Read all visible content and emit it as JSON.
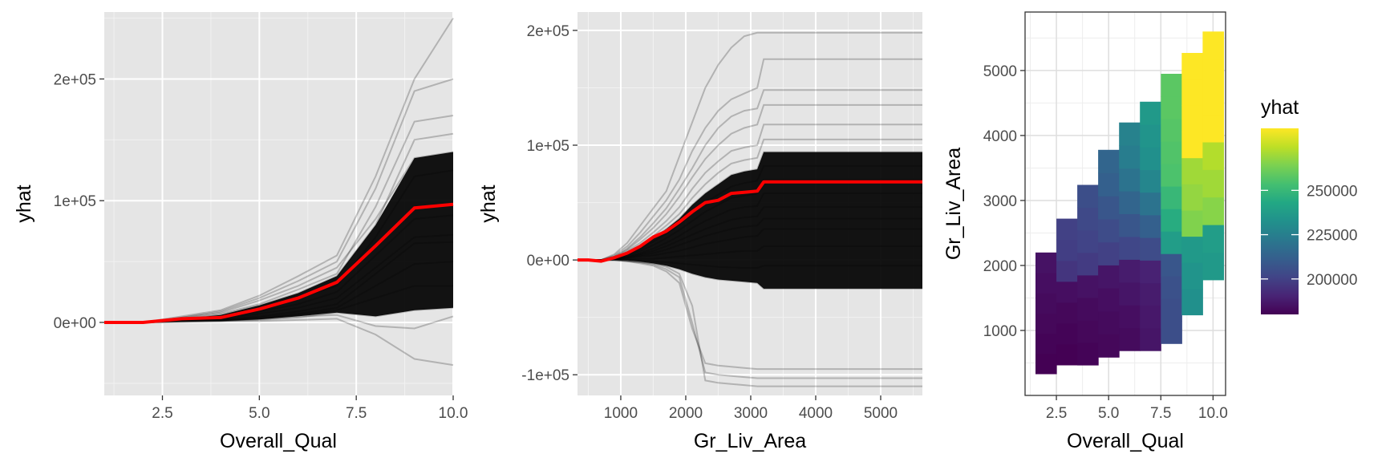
{
  "chart_data": [
    {
      "type": "line",
      "xlabel": "Overall_Qual",
      "ylabel": "yhat",
      "xlim": [
        1,
        10
      ],
      "ylim": [
        -60000,
        255000
      ],
      "x_ticks": [
        2.5,
        5.0,
        7.5,
        10.0
      ],
      "x_tick_labels": [
        "2.5",
        "5.0",
        "7.5",
        "10.0"
      ],
      "y_ticks": [
        0,
        100000,
        200000
      ],
      "y_tick_labels": [
        "0e+00",
        "1e+05",
        "2e+05"
      ],
      "grid": true,
      "x": [
        1,
        2,
        3,
        4,
        5,
        6,
        7,
        8,
        9,
        10
      ],
      "series": [
        {
          "role": "pd-average",
          "color": "#ff0000",
          "values": [
            0,
            0,
            3000,
            4000,
            11000,
            20000,
            33000,
            63000,
            94000,
            97000
          ]
        },
        {
          "role": "ice",
          "color": "#000000",
          "values": [
            0,
            0,
            4000,
            8000,
            18000,
            30000,
            45000,
            85000,
            135000,
            140000
          ]
        },
        {
          "role": "ice",
          "color": "#000000",
          "values": [
            0,
            0,
            5000,
            10000,
            22000,
            38000,
            55000,
            120000,
            200000,
            250000
          ]
        },
        {
          "role": "ice",
          "color": "#000000",
          "values": [
            0,
            0,
            4000,
            9000,
            20000,
            34000,
            50000,
            110000,
            190000,
            200000
          ]
        },
        {
          "role": "ice",
          "color": "#000000",
          "values": [
            0,
            0,
            3000,
            7000,
            15000,
            27000,
            40000,
            95000,
            165000,
            170000
          ]
        },
        {
          "role": "ice",
          "color": "#000000",
          "values": [
            0,
            0,
            3000,
            6000,
            14000,
            24000,
            38000,
            80000,
            150000,
            155000
          ]
        },
        {
          "role": "ice",
          "color": "#000000",
          "values": [
            0,
            0,
            2500,
            5000,
            12000,
            20000,
            30000,
            70000,
            120000,
            125000
          ]
        },
        {
          "role": "ice",
          "color": "#000000",
          "values": [
            0,
            0,
            2000,
            4000,
            9000,
            15000,
            25000,
            55000,
            85000,
            88000
          ]
        },
        {
          "role": "ice",
          "color": "#000000",
          "values": [
            0,
            0,
            1500,
            3000,
            7000,
            12000,
            20000,
            45000,
            70000,
            72000
          ]
        },
        {
          "role": "ice",
          "color": "#000000",
          "values": [
            0,
            0,
            1000,
            2000,
            5000,
            9000,
            15000,
            40000,
            65000,
            66000
          ]
        },
        {
          "role": "ice",
          "color": "#000000",
          "values": [
            0,
            0,
            1000,
            1000,
            3000,
            6000,
            10000,
            20000,
            30000,
            30000
          ]
        },
        {
          "role": "ice",
          "color": "#000000",
          "values": [
            0,
            0,
            500,
            1000,
            2000,
            4000,
            8000,
            5000,
            10000,
            12000
          ]
        },
        {
          "role": "ice",
          "color": "#000000",
          "values": [
            0,
            0,
            500,
            1000,
            1000,
            2000,
            3000,
            -10000,
            -30000,
            -35000
          ]
        },
        {
          "role": "ice",
          "color": "#000000",
          "values": [
            0,
            0,
            1000,
            2000,
            4000,
            7000,
            12000,
            30000,
            48000,
            50000
          ]
        },
        {
          "role": "ice",
          "color": "#000000",
          "values": [
            0,
            0,
            800,
            1500,
            2500,
            5000,
            6000,
            -3000,
            -5000,
            5000
          ]
        }
      ]
    },
    {
      "type": "line",
      "xlabel": "Gr_Liv_Area",
      "ylabel": "yhat",
      "xlim": [
        334,
        5642
      ],
      "ylim": [
        -118000,
        216000
      ],
      "x_ticks": [
        1000,
        2000,
        3000,
        4000,
        5000
      ],
      "x_tick_labels": [
        "1000",
        "2000",
        "3000",
        "4000",
        "5000"
      ],
      "y_ticks": [
        -100000,
        0,
        100000,
        200000
      ],
      "y_tick_labels": [
        "-1e+05",
        "0e+00",
        "1e+05",
        "2e+05"
      ],
      "grid": true,
      "x": [
        334,
        500,
        700,
        900,
        1100,
        1300,
        1500,
        1700,
        1900,
        2100,
        2300,
        2500,
        2700,
        2900,
        3100,
        3200,
        4000,
        5000,
        5642
      ],
      "series": [
        {
          "role": "pd-average",
          "color": "#ff0000",
          "values": [
            0,
            0,
            -1000,
            2000,
            6000,
            12000,
            20000,
            25000,
            33000,
            42000,
            50000,
            52000,
            58000,
            59000,
            60000,
            68000,
            68000,
            68000,
            68000
          ]
        },
        {
          "role": "ice",
          "color": "#000000",
          "values": [
            0,
            0,
            0,
            5000,
            15000,
            30000,
            45000,
            60000,
            90000,
            120000,
            150000,
            170000,
            185000,
            195000,
            198000,
            198000,
            198000,
            198000,
            198000
          ]
        },
        {
          "role": "ice",
          "color": "#000000",
          "values": [
            0,
            0,
            0,
            4000,
            12000,
            24000,
            38000,
            52000,
            70000,
            95000,
            115000,
            130000,
            140000,
            145000,
            150000,
            175000,
            175000,
            175000,
            175000
          ]
        },
        {
          "role": "ice",
          "color": "#000000",
          "values": [
            0,
            0,
            0,
            3000,
            10000,
            20000,
            32000,
            45000,
            62000,
            80000,
            100000,
            115000,
            125000,
            130000,
            132000,
            148000,
            148000,
            148000,
            148000
          ]
        },
        {
          "role": "ice",
          "color": "#000000",
          "values": [
            0,
            0,
            0,
            3000,
            9000,
            18000,
            28000,
            40000,
            55000,
            72000,
            88000,
            100000,
            110000,
            115000,
            118000,
            135000,
            135000,
            135000,
            135000
          ]
        },
        {
          "role": "ice",
          "color": "#000000",
          "values": [
            0,
            0,
            0,
            2000,
            8000,
            15000,
            24000,
            34000,
            46000,
            62000,
            76000,
            86000,
            95000,
            98000,
            100000,
            118000,
            118000,
            118000,
            118000
          ]
        },
        {
          "role": "ice",
          "color": "#000000",
          "values": [
            0,
            0,
            0,
            2000,
            7000,
            13000,
            21000,
            30000,
            40000,
            54000,
            66000,
            76000,
            84000,
            87000,
            89000,
            105000,
            105000,
            105000,
            105000
          ]
        },
        {
          "role": "ice",
          "color": "#000000",
          "values": [
            0,
            0,
            0,
            2000,
            6000,
            12000,
            19000,
            27000,
            36000,
            48000,
            58000,
            66000,
            74000,
            77000,
            79000,
            94000,
            94000,
            94000,
            94000
          ]
        },
        {
          "role": "ice",
          "color": "#000000",
          "values": [
            0,
            0,
            0,
            1500,
            5000,
            10000,
            16000,
            23000,
            31000,
            41000,
            50000,
            57000,
            64000,
            67000,
            69000,
            82000,
            82000,
            82000,
            82000
          ]
        },
        {
          "role": "ice",
          "color": "#000000",
          "values": [
            0,
            0,
            0,
            1000,
            4000,
            8000,
            13000,
            19000,
            26000,
            34000,
            42000,
            48000,
            54000,
            56000,
            58000,
            70000,
            70000,
            70000,
            70000
          ]
        },
        {
          "role": "ice",
          "color": "#000000",
          "values": [
            0,
            0,
            0,
            1000,
            3000,
            6000,
            10000,
            15000,
            21000,
            28000,
            34000,
            39000,
            44000,
            46000,
            47000,
            58000,
            58000,
            58000,
            58000
          ]
        },
        {
          "role": "ice",
          "color": "#000000",
          "values": [
            0,
            0,
            0,
            500,
            2500,
            5000,
            8000,
            12000,
            17000,
            22000,
            27000,
            31000,
            35000,
            37000,
            38000,
            46000,
            46000,
            46000,
            46000
          ]
        },
        {
          "role": "ice",
          "color": "#000000",
          "values": [
            0,
            0,
            0,
            500,
            2000,
            4000,
            6000,
            9000,
            13000,
            17000,
            21000,
            24000,
            27000,
            29000,
            30000,
            36000,
            36000,
            36000,
            36000
          ]
        },
        {
          "role": "ice",
          "color": "#000000",
          "values": [
            0,
            0,
            0,
            500,
            1500,
            3000,
            4000,
            6000,
            8000,
            11000,
            14000,
            16000,
            18000,
            20000,
            21000,
            27000,
            27000,
            27000,
            27000
          ]
        },
        {
          "role": "ice",
          "color": "#000000",
          "values": [
            0,
            0,
            0,
            0,
            500,
            1000,
            1000,
            2000,
            3000,
            4000,
            5000,
            6000,
            7000,
            8000,
            8000,
            12000,
            12000,
            12000,
            12000
          ]
        },
        {
          "role": "ice",
          "color": "#000000",
          "values": [
            0,
            0,
            0,
            0,
            0,
            -500,
            -1000,
            -2000,
            -3000,
            -4000,
            -5000,
            -6000,
            -6500,
            -7000,
            -7000,
            -5000,
            -5000,
            -5000,
            -5000
          ]
        },
        {
          "role": "ice",
          "color": "#000000",
          "values": [
            0,
            0,
            0,
            0,
            -1000,
            -2000,
            -3000,
            -5000,
            -8000,
            -12000,
            -15000,
            -17000,
            -18000,
            -19000,
            -20000,
            -25000,
            -25000,
            -25000,
            -25000
          ]
        },
        {
          "role": "ice",
          "color": "#000000",
          "values": [
            0,
            0,
            0,
            0,
            -1000,
            -3000,
            -5000,
            -10000,
            -20000,
            -60000,
            -90000,
            -92000,
            -93000,
            -94000,
            -95000,
            -95000,
            -95000,
            -95000,
            -95000
          ]
        },
        {
          "role": "ice",
          "color": "#000000",
          "values": [
            0,
            0,
            0,
            0,
            -1000,
            -2000,
            -4000,
            -8000,
            -15000,
            -55000,
            -98000,
            -100000,
            -101000,
            -102000,
            -103000,
            -103000,
            -103000,
            -103000,
            -103000
          ]
        },
        {
          "role": "ice",
          "color": "#000000",
          "values": [
            0,
            0,
            0,
            0,
            -500,
            -1500,
            -3000,
            -6000,
            -12000,
            -40000,
            -105000,
            -107000,
            -108000,
            -109000,
            -110000,
            -110000,
            -110000,
            -110000,
            -110000
          ]
        }
      ]
    },
    {
      "type": "heatmap",
      "xlabel": "Overall_Qual",
      "ylabel": "Gr_Liv_Area",
      "xlim": [
        1,
        10.6
      ],
      "ylim": [
        0,
        5900
      ],
      "x_ticks": [
        2.5,
        5.0,
        7.5,
        10.0
      ],
      "x_tick_labels": [
        "2.5",
        "5.0",
        "7.5",
        "10.0"
      ],
      "y_ticks": [
        1000,
        2000,
        3000,
        4000,
        5000
      ],
      "y_tick_labels": [
        "1000",
        "2000",
        "3000",
        "4000",
        "5000"
      ],
      "grid": true,
      "columns": [
        {
          "x": 2,
          "y_min": 334,
          "y_max": 2200,
          "values": [
            180000,
            181000,
            182000,
            183000,
            184000,
            185000
          ]
        },
        {
          "x": 3,
          "y_min": 470,
          "y_max": 2720,
          "values": [
            180000,
            181000,
            182000,
            184000,
            196000,
            199000,
            200000
          ]
        },
        {
          "x": 4,
          "y_min": 470,
          "y_max": 3240,
          "values": [
            181000,
            182000,
            183000,
            185000,
            198000,
            201000,
            203000,
            205000
          ]
        },
        {
          "x": 5,
          "y_min": 590,
          "y_max": 3780,
          "values": [
            182000,
            183000,
            184000,
            186000,
            200000,
            204000,
            208000,
            212000,
            214000
          ]
        },
        {
          "x": 6,
          "y_min": 690,
          "y_max": 4200,
          "values": [
            183000,
            184000,
            186000,
            188000,
            202000,
            208000,
            214000,
            220000,
            224000,
            226000
          ]
        },
        {
          "x": 7,
          "y_min": 690,
          "y_max": 4520,
          "values": [
            186000,
            187000,
            188000,
            190000,
            204000,
            212000,
            220000,
            228000,
            232000,
            234000,
            236000
          ]
        },
        {
          "x": 8,
          "y_min": 800,
          "y_max": 4950,
          "values": [
            205000,
            205000,
            206000,
            208000,
            238000,
            245000,
            250000,
            255000,
            256000,
            257000,
            258000,
            258000
          ]
        },
        {
          "x": 9,
          "y_min": 1240,
          "y_max": 5270,
          "values": [
            232000,
            234000,
            236000,
            265000,
            268000,
            270000,
            285000,
            285000,
            285000,
            285000
          ]
        },
        {
          "x": 10,
          "y_min": 1780,
          "y_max": 5600,
          "values": [
            236000,
            238000,
            266000,
            270000,
            273000,
            285000,
            285000,
            285000,
            285000
          ]
        }
      ],
      "legend": {
        "title": "yhat",
        "range": [
          180000,
          285000
        ],
        "ticks": [
          200000,
          225000,
          250000
        ],
        "tick_labels": [
          "200000",
          "225000",
          "250000"
        ],
        "colormap": "viridis"
      }
    }
  ]
}
